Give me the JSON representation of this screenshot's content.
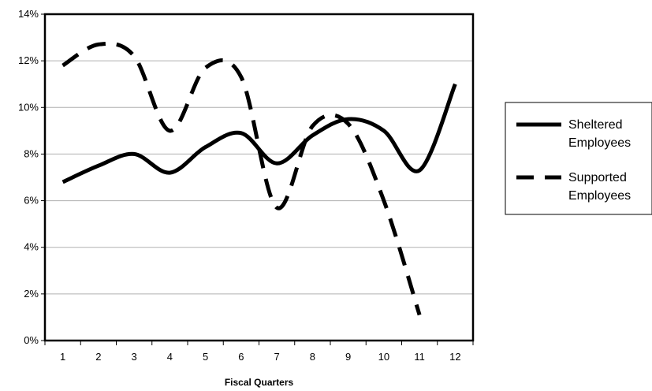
{
  "chart_data": {
    "type": "line",
    "title": "",
    "xlabel": "Fiscal Quarters",
    "ylabel": "",
    "x": [
      1,
      2,
      3,
      4,
      5,
      6,
      7,
      8,
      9,
      10,
      11,
      12
    ],
    "ylim": [
      0,
      14
    ],
    "yticks": [
      "0%",
      "2%",
      "4%",
      "6%",
      "8%",
      "10%",
      "12%",
      "14%"
    ],
    "grid": true,
    "legend_position": "right",
    "series": [
      {
        "name": "Sheltered Employees",
        "style": "solid",
        "color": "#000000",
        "values": [
          6.8,
          7.5,
          8.0,
          7.2,
          8.3,
          8.9,
          7.6,
          8.8,
          9.5,
          9.0,
          7.3,
          11.0
        ]
      },
      {
        "name": "Supported Employees",
        "style": "dashed",
        "color": "#000000",
        "values": [
          11.8,
          12.7,
          12.2,
          9.0,
          11.7,
          11.3,
          5.7,
          9.2,
          9.3,
          6.0,
          1.1,
          null
        ]
      }
    ]
  }
}
